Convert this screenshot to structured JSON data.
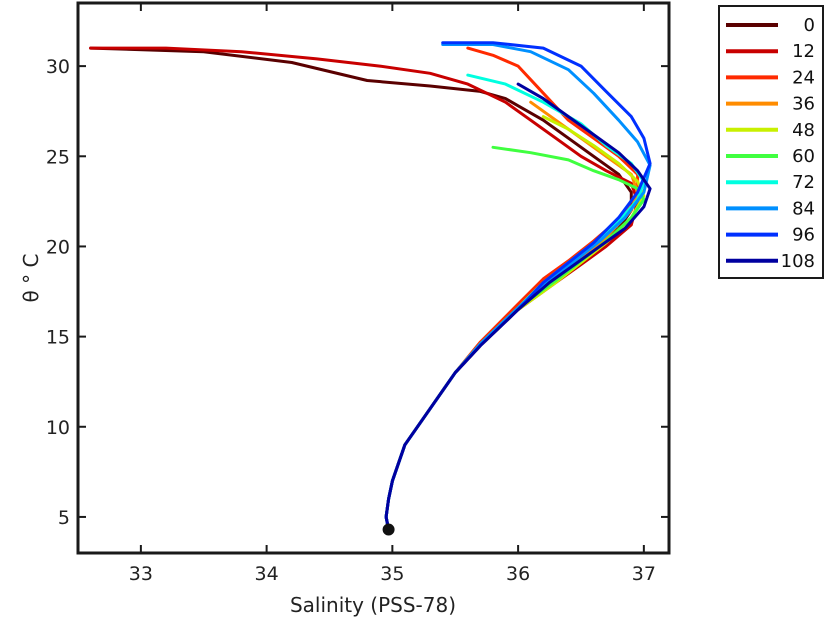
{
  "chart_data": {
    "type": "line",
    "title": "",
    "xlabel": "Salinity (PSS-78)",
    "ylabel": "θ ° C",
    "xlim": [
      32.5,
      37.2
    ],
    "ylim": [
      3,
      33.5
    ],
    "xticks": [
      33,
      34,
      35,
      36,
      37
    ],
    "yticks": [
      5,
      10,
      15,
      20,
      25,
      30
    ],
    "grid": false,
    "legend_position": "outside-right-top",
    "legend_entries": [
      "0",
      "12",
      "24",
      "36",
      "48",
      "60",
      "72",
      "84",
      "96",
      "108"
    ],
    "series_colors": [
      "#5a0000",
      "#c80000",
      "#ff2a00",
      "#ff8c00",
      "#c8f000",
      "#40ff40",
      "#00ffe0",
      "#0090ff",
      "#0030ff",
      "#0000a0"
    ],
    "series": [
      {
        "name": "0",
        "x": [
          32.6,
          33.5,
          34.2,
          34.8,
          35.3,
          35.7,
          35.9,
          36.0,
          36.2,
          36.4,
          36.6,
          36.8,
          36.9,
          36.9,
          36.8,
          36.6,
          36.4,
          36.2,
          36.0,
          35.7,
          35.5,
          35.3,
          35.1,
          35.0,
          34.97,
          34.95,
          34.97
        ],
        "y": [
          31.0,
          30.8,
          30.2,
          29.2,
          28.9,
          28.6,
          28.2,
          27.8,
          27.0,
          26.0,
          25.0,
          24.0,
          23.0,
          22.0,
          21.0,
          20.0,
          19.0,
          18.0,
          16.5,
          14.5,
          13.0,
          11.0,
          9.0,
          7.0,
          6.0,
          5.0,
          4.3
        ]
      },
      {
        "name": "12",
        "x": [
          32.6,
          33.2,
          33.8,
          34.4,
          34.9,
          35.3,
          35.6,
          35.9,
          36.1,
          36.3,
          36.5,
          36.7,
          36.9,
          36.95,
          36.9,
          36.7,
          36.5,
          36.3,
          36.0,
          35.7,
          35.5,
          35.3,
          35.1,
          35.0,
          34.97,
          34.95,
          34.97
        ],
        "y": [
          31.0,
          31.0,
          30.8,
          30.4,
          30.0,
          29.6,
          29.0,
          28.0,
          27.0,
          26.0,
          25.0,
          24.2,
          23.5,
          22.5,
          21.2,
          20.0,
          19.0,
          18.0,
          16.5,
          14.5,
          13.0,
          11.0,
          9.0,
          7.0,
          6.0,
          5.0,
          4.3
        ]
      },
      {
        "name": "24",
        "x": [
          35.6,
          35.8,
          36.0,
          36.2,
          36.4,
          36.6,
          36.8,
          36.95,
          36.95,
          36.8,
          36.6,
          36.4,
          36.2,
          36.0,
          35.7,
          35.5,
          35.3,
          35.1,
          35.0,
          34.97,
          34.95,
          34.97
        ],
        "y": [
          31.0,
          30.6,
          30.0,
          28.5,
          27.0,
          26.0,
          25.0,
          24.0,
          23.0,
          21.5,
          20.3,
          19.2,
          18.2,
          16.8,
          14.7,
          13.0,
          11.0,
          9.0,
          7.0,
          6.0,
          5.0,
          4.3
        ]
      },
      {
        "name": "36",
        "x": [
          36.1,
          36.3,
          36.5,
          36.7,
          36.9,
          36.95,
          36.9,
          36.7,
          36.5,
          36.3,
          36.0,
          35.7,
          35.5,
          35.3,
          35.1,
          35.0,
          34.97,
          34.95,
          34.97
        ],
        "y": [
          28.0,
          27.0,
          26.0,
          25.0,
          24.0,
          23.0,
          22.0,
          20.5,
          19.3,
          18.2,
          16.6,
          14.6,
          13.0,
          11.0,
          9.0,
          7.0,
          6.0,
          5.0,
          4.3
        ]
      },
      {
        "name": "48",
        "x": [
          36.2,
          36.4,
          36.6,
          36.8,
          36.95,
          37.0,
          36.9,
          36.7,
          36.5,
          36.3,
          36.0,
          35.7,
          35.5,
          35.3,
          35.1,
          35.0,
          34.97,
          34.95,
          34.97
        ],
        "y": [
          27.2,
          26.5,
          25.6,
          24.6,
          23.6,
          22.8,
          21.6,
          20.2,
          19.1,
          18.0,
          16.5,
          14.5,
          13.0,
          11.0,
          9.0,
          7.0,
          6.0,
          5.0,
          4.3
        ]
      },
      {
        "name": "60",
        "x": [
          35.8,
          36.1,
          36.4,
          36.6,
          36.8,
          36.95,
          37.0,
          36.9,
          36.7,
          36.5,
          36.3,
          36.0,
          35.7,
          35.5,
          35.3,
          35.1,
          35.0,
          34.97,
          34.95,
          34.97
        ],
        "y": [
          25.5,
          25.2,
          24.8,
          24.2,
          23.7,
          23.2,
          22.6,
          21.6,
          20.3,
          19.2,
          18.1,
          16.6,
          14.6,
          13.0,
          11.0,
          9.0,
          7.0,
          6.0,
          5.0,
          4.3
        ]
      },
      {
        "name": "72",
        "x": [
          35.6,
          35.9,
          36.2,
          36.5,
          36.7,
          36.9,
          37.0,
          36.95,
          36.8,
          36.6,
          36.4,
          36.2,
          36.0,
          35.7,
          35.5,
          35.3,
          35.1,
          35.0,
          34.97,
          34.95,
          34.97
        ],
        "y": [
          29.5,
          29.0,
          28.0,
          26.8,
          25.6,
          24.6,
          23.6,
          22.6,
          21.4,
          20.2,
          19.1,
          18.0,
          16.6,
          14.6,
          13.0,
          11.0,
          9.0,
          7.0,
          6.0,
          5.0,
          4.3
        ]
      },
      {
        "name": "84",
        "x": [
          35.4,
          35.8,
          36.1,
          36.4,
          36.6,
          36.8,
          36.95,
          37.05,
          37.0,
          36.85,
          36.65,
          36.45,
          36.25,
          36.0,
          35.7,
          35.5,
          35.3,
          35.1,
          35.0,
          34.97,
          34.95,
          34.97
        ],
        "y": [
          31.2,
          31.2,
          30.8,
          29.8,
          28.5,
          27.0,
          25.8,
          24.5,
          23.0,
          21.6,
          20.3,
          19.2,
          18.1,
          16.6,
          14.6,
          13.0,
          11.0,
          9.0,
          7.0,
          6.0,
          5.0,
          4.3
        ]
      },
      {
        "name": "96",
        "x": [
          35.4,
          35.8,
          36.2,
          36.5,
          36.7,
          36.9,
          37.0,
          37.05,
          36.95,
          36.8,
          36.6,
          36.4,
          36.2,
          36.0,
          35.7,
          35.5,
          35.3,
          35.1,
          35.0,
          34.97,
          34.95,
          34.97
        ],
        "y": [
          31.3,
          31.3,
          31.0,
          30.0,
          28.6,
          27.2,
          26.0,
          24.6,
          23.0,
          21.6,
          20.2,
          19.1,
          18.0,
          16.5,
          14.5,
          13.0,
          11.0,
          9.0,
          7.0,
          6.0,
          5.0,
          4.3
        ]
      },
      {
        "name": "108",
        "x": [
          36.0,
          36.2,
          36.4,
          36.6,
          36.8,
          36.95,
          37.05,
          37.0,
          36.85,
          36.65,
          36.45,
          36.25,
          36.0,
          35.7,
          35.5,
          35.3,
          35.1,
          35.0,
          34.97,
          34.95,
          34.97
        ],
        "y": [
          29.0,
          28.2,
          27.2,
          26.2,
          25.2,
          24.2,
          23.2,
          22.2,
          21.0,
          20.0,
          19.0,
          18.0,
          16.5,
          14.5,
          13.0,
          11.0,
          9.0,
          7.0,
          6.0,
          5.0,
          4.3
        ]
      }
    ],
    "endpoint_marker": {
      "x": 34.97,
      "y": 4.3,
      "color": "#111111"
    }
  }
}
